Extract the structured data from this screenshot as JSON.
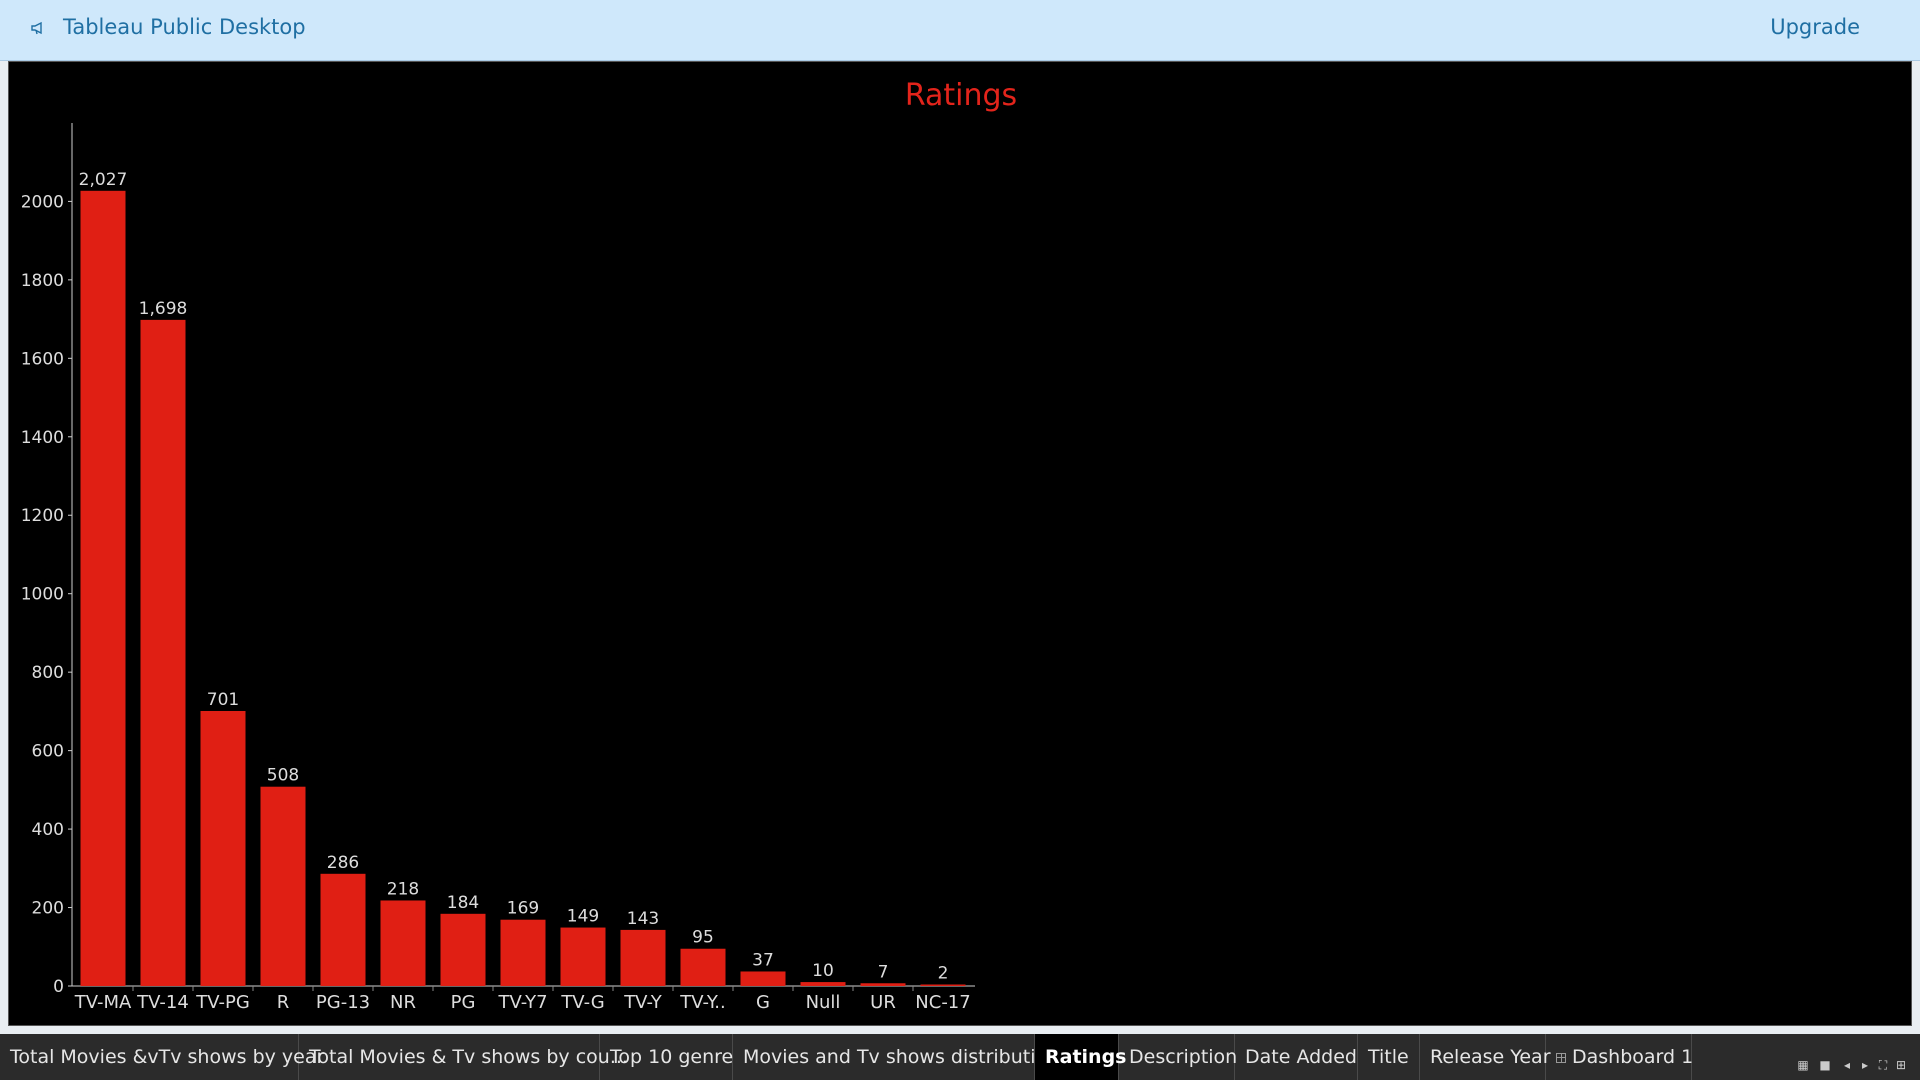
{
  "header": {
    "app_title": "Tableau Public Desktop",
    "upgrade_label": "Upgrade"
  },
  "chart_data": {
    "type": "bar",
    "title": "Ratings",
    "xlabel": "",
    "ylabel": "",
    "categories": [
      "TV-MA",
      "TV-14",
      "TV-PG",
      "R",
      "PG-13",
      "NR",
      "PG",
      "TV-Y7",
      "TV-G",
      "TV-Y",
      "TV-Y..",
      "G",
      "Null",
      "UR",
      "NC-17"
    ],
    "values": [
      2027,
      1698,
      701,
      508,
      286,
      218,
      184,
      169,
      149,
      143,
      95,
      37,
      10,
      7,
      2
    ],
    "value_labels": [
      "2,027",
      "1,698",
      "701",
      "508",
      "286",
      "218",
      "184",
      "169",
      "149",
      "143",
      "95",
      "37",
      "10",
      "7",
      "2"
    ],
    "yticks": [
      0,
      200,
      400,
      600,
      800,
      1000,
      1200,
      1400,
      1600,
      1800,
      2000
    ],
    "ylim": [
      0,
      2200
    ],
    "bar_color": "#e01f14",
    "title_color": "#e3241b",
    "background": "#000000",
    "grid": false,
    "legend": "none"
  },
  "tabs": [
    {
      "label": "Total Movies &vTv shows by year",
      "active": false,
      "dashboard": false
    },
    {
      "label": "Total Movies & Tv shows  by cou...",
      "active": false,
      "dashboard": false
    },
    {
      "label": "Top 10 genre",
      "active": false,
      "dashboard": false
    },
    {
      "label": "Movies and Tv shows distribution",
      "active": false,
      "dashboard": false
    },
    {
      "label": "Ratings",
      "active": true,
      "dashboard": false
    },
    {
      "label": "Description",
      "active": false,
      "dashboard": false
    },
    {
      "label": "Date Added",
      "active": false,
      "dashboard": false
    },
    {
      "label": "Title",
      "active": false,
      "dashboard": false
    },
    {
      "label": "Release Year",
      "active": false,
      "dashboard": false
    },
    {
      "label": "Dashboard 1",
      "active": false,
      "dashboard": true
    }
  ],
  "tab_controls": [
    {
      "name": "show-filmstrip-icon",
      "glyph": "▦"
    },
    {
      "name": "show-tabs-icon",
      "glyph": "■"
    },
    {
      "name": "scroll-left-icon",
      "glyph": "◂"
    },
    {
      "name": "scroll-right-icon",
      "glyph": "▸"
    },
    {
      "name": "presentation-mode-icon",
      "glyph": "⛶"
    },
    {
      "name": "new-sheet-icon",
      "glyph": "⊞"
    }
  ]
}
